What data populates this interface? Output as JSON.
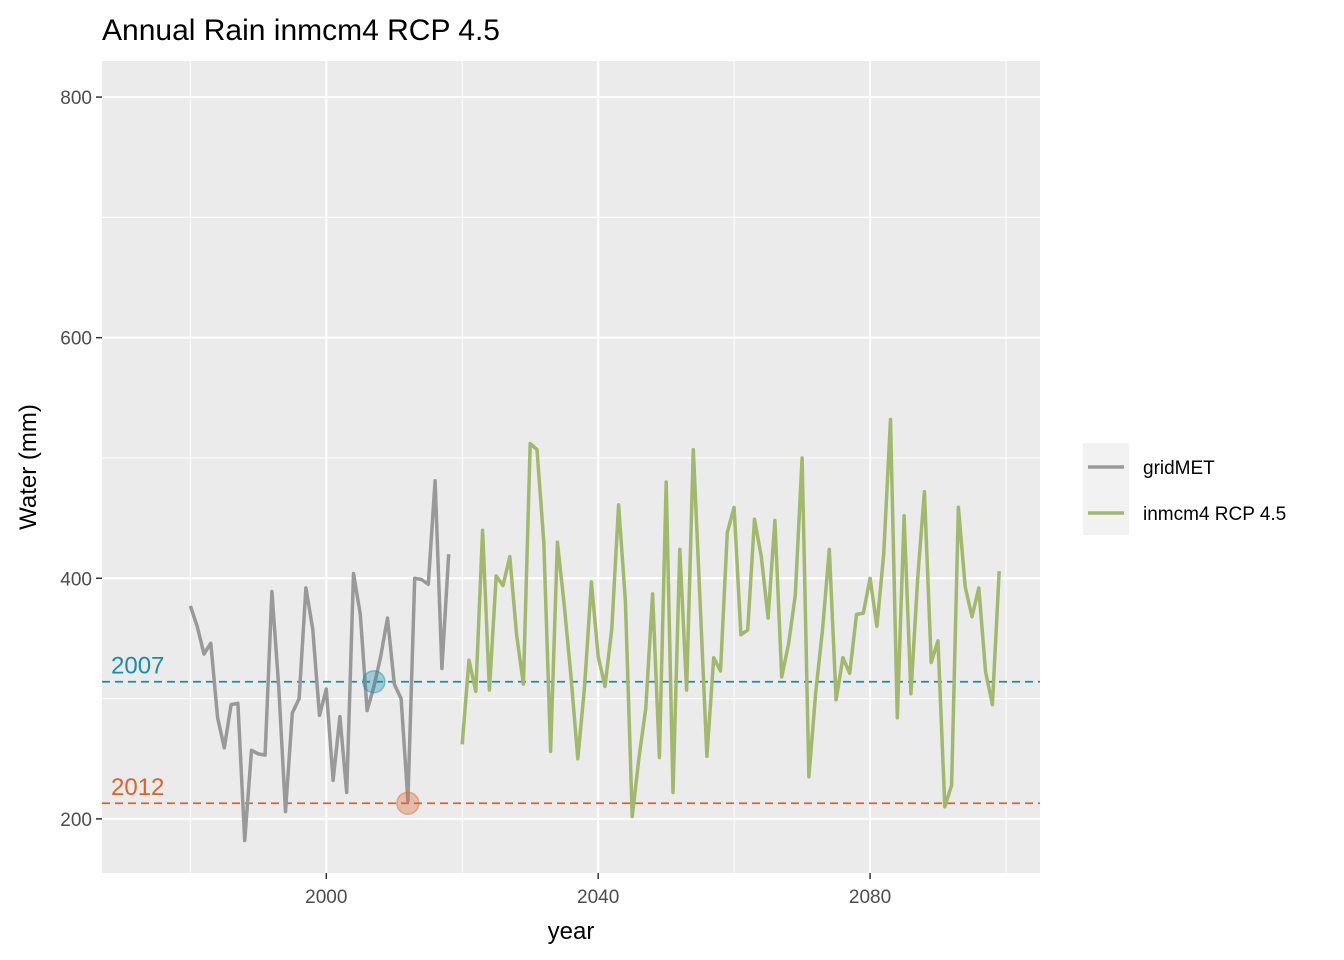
{
  "chart_data": {
    "type": "line",
    "title": "Annual Rain inmcm4 RCP 4.5",
    "xlabel": "year",
    "ylabel": "Water (mm)",
    "xlim": [
      1967,
      2105
    ],
    "ylim": [
      155,
      830
    ],
    "x_ticks": [
      2000,
      2040,
      2080
    ],
    "y_ticks": [
      200,
      400,
      600,
      800
    ],
    "grid": true,
    "legend_position": "right",
    "series": [
      {
        "name": "gridMET",
        "color": "#999999",
        "x": [
          1980,
          1981,
          1982,
          1983,
          1984,
          1985,
          1986,
          1987,
          1988,
          1989,
          1990,
          1991,
          1992,
          1993,
          1994,
          1995,
          1996,
          1997,
          1998,
          1999,
          2000,
          2001,
          2002,
          2003,
          2004,
          2005,
          2006,
          2007,
          2008,
          2009,
          2010,
          2011,
          2012,
          2013,
          2014,
          2015,
          2016,
          2017,
          2018,
          2019
        ],
        "values": [
          377,
          360,
          337,
          346,
          284,
          259,
          295,
          296,
          182,
          257,
          254,
          253,
          389,
          310,
          206,
          288,
          300,
          392,
          358,
          286,
          308,
          232,
          285,
          222,
          404,
          370,
          290,
          310,
          335,
          367,
          312,
          300,
          215,
          400,
          399,
          395,
          481,
          325,
          420,
          null
        ]
      },
      {
        "name": "inmcm4 RCP 4.5",
        "color": "#a2b86c",
        "x": [
          2020,
          2021,
          2022,
          2023,
          2024,
          2025,
          2026,
          2027,
          2028,
          2029,
          2030,
          2031,
          2032,
          2033,
          2034,
          2035,
          2036,
          2037,
          2038,
          2039,
          2040,
          2041,
          2042,
          2043,
          2044,
          2045,
          2046,
          2047,
          2048,
          2049,
          2050,
          2051,
          2052,
          2053,
          2054,
          2055,
          2056,
          2057,
          2058,
          2059,
          2060,
          2061,
          2062,
          2063,
          2064,
          2065,
          2066,
          2067,
          2068,
          2069,
          2070,
          2071,
          2072,
          2073,
          2074,
          2075,
          2076,
          2077,
          2078,
          2079,
          2080,
          2081,
          2082,
          2083,
          2084,
          2085,
          2086,
          2087,
          2088,
          2089,
          2090,
          2091,
          2092,
          2093,
          2094,
          2095,
          2096,
          2097,
          2098,
          2099
        ],
        "values": [
          262,
          332,
          306,
          440,
          307,
          402,
          394,
          418,
          353,
          312,
          512,
          507,
          430,
          256,
          430,
          378,
          318,
          250,
          310,
          397,
          335,
          310,
          358,
          461,
          381,
          202,
          251,
          292,
          387,
          251,
          480,
          222,
          424,
          307,
          507,
          380,
          252,
          334,
          323,
          438,
          459,
          353,
          357,
          449,
          418,
          367,
          448,
          318,
          345,
          386,
          500,
          235,
          305,
          357,
          424,
          299,
          334,
          321,
          370,
          371,
          400,
          360,
          420,
          532,
          284,
          452,
          304,
          400,
          472,
          330,
          348,
          210,
          228,
          459,
          393,
          368,
          392,
          322,
          295,
          406
        ]
      }
    ],
    "annotations": [
      {
        "label": "2007",
        "year": 2007,
        "value": 314,
        "color": "#1a8ca8"
      },
      {
        "label": "2012",
        "value": 213,
        "year": 2012,
        "color": "#d9652d"
      }
    ]
  }
}
